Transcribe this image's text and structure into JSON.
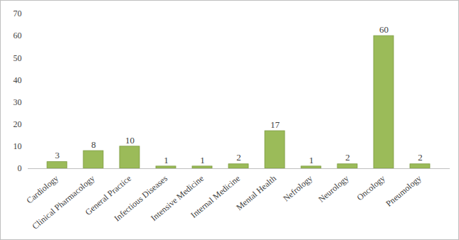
{
  "chart_data": {
    "type": "bar",
    "categories": [
      "Cardiology",
      "Clinical Pharmacology",
      "General Practice",
      "Infectious Diseases",
      "Intensive Medicine",
      "Internal Medicine",
      "Mental Health",
      "Nefrology",
      "Neurology",
      "Oncology",
      "Pneumology"
    ],
    "values": [
      3,
      8,
      10,
      1,
      1,
      2,
      17,
      1,
      2,
      60,
      2
    ],
    "color": "#9bbb59",
    "ylim": [
      0,
      70
    ],
    "yticks": [
      0,
      10,
      20,
      30,
      40,
      50,
      60,
      70
    ],
    "grid": false,
    "data_labels": true
  }
}
